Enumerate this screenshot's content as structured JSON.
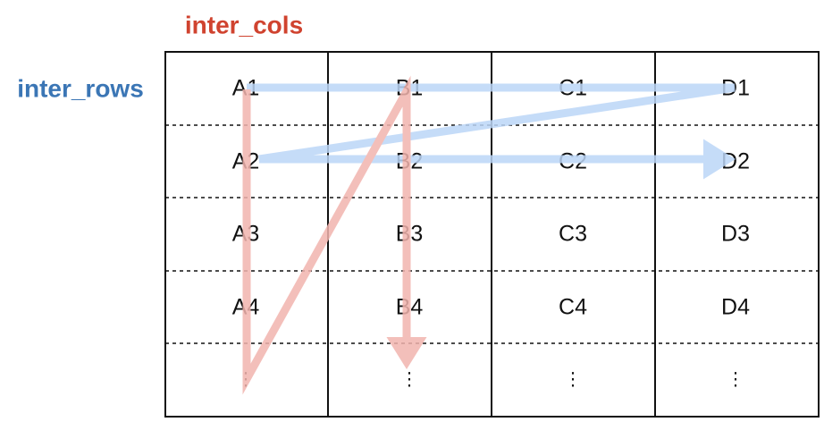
{
  "labels": {
    "cols": "inter_cols",
    "rows": "inter_rows"
  },
  "grid": {
    "rows": [
      [
        "A1",
        "B1",
        "C1",
        "D1"
      ],
      [
        "A2",
        "B2",
        "C2",
        "D2"
      ],
      [
        "A3",
        "B3",
        "C3",
        "D3"
      ],
      [
        "A4",
        "B4",
        "C4",
        "D4"
      ],
      [
        "⋮",
        "⋮",
        "⋮",
        "⋮"
      ]
    ]
  }
}
